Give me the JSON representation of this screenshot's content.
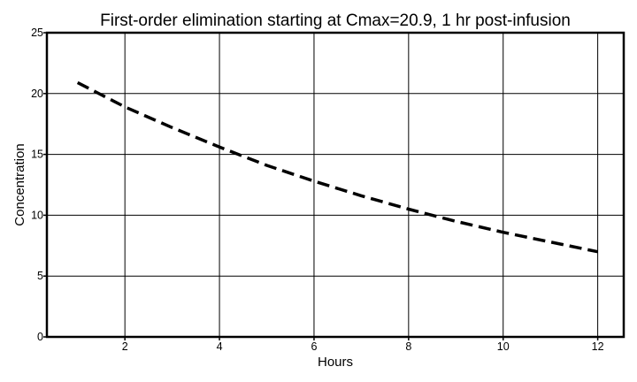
{
  "chart_data": {
    "type": "line",
    "title": "First-order elimination starting at Cmax=20.9, 1 hr post-infusion",
    "xlabel": "Hours",
    "ylabel": "Concentration",
    "xlim": [
      0.35,
      12.55
    ],
    "ylim": [
      0,
      25
    ],
    "xticks": [
      2,
      4,
      6,
      8,
      10,
      12
    ],
    "yticks": [
      0,
      5,
      10,
      15,
      20,
      25
    ],
    "grid": true,
    "legend": "none",
    "series": [
      {
        "line_style": "dashed",
        "color": "#000000",
        "x": [
          1,
          2,
          3,
          4,
          5,
          6,
          7,
          8,
          9,
          10,
          11,
          12
        ],
        "y": [
          20.9,
          18.9,
          17.2,
          15.6,
          14.1,
          12.8,
          11.6,
          10.5,
          9.5,
          8.6,
          7.8,
          7.0
        ]
      }
    ]
  }
}
